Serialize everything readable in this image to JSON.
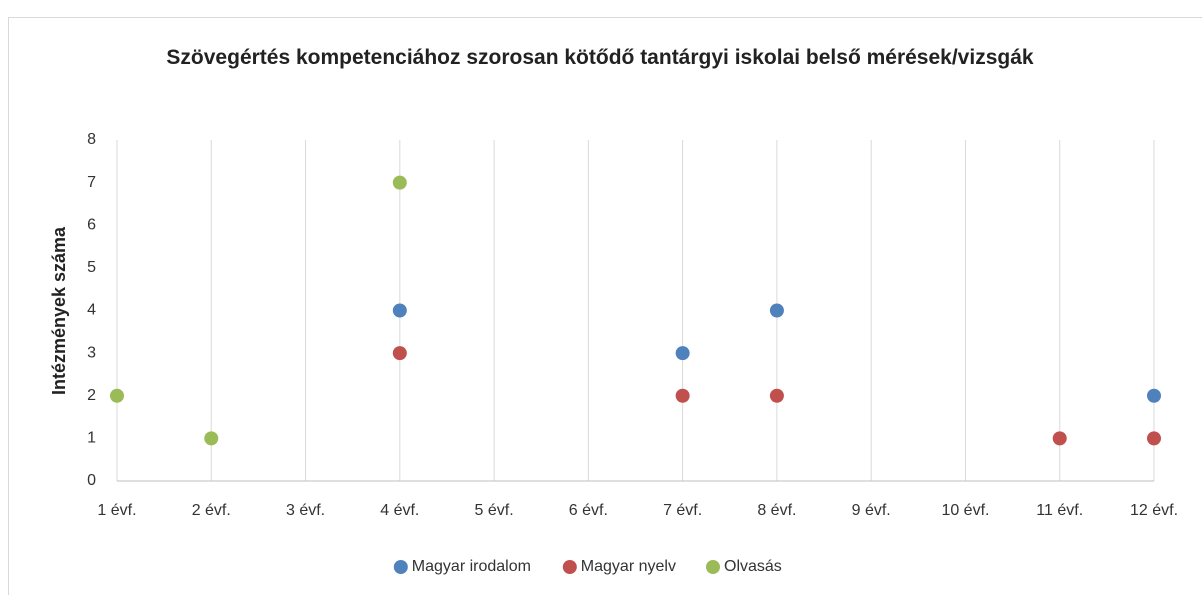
{
  "chart_data": {
    "type": "scatter",
    "title": "Szövegértés kompetenciához szorosan kötődő tantárgyi iskolai belső mérések/vizsgák",
    "ylabel": "Intézmények száma",
    "categories": [
      "1 évf.",
      "2 évf.",
      "3 évf.",
      "4 évf.",
      "5 évf.",
      "6 évf.",
      "7 évf.",
      "8 évf.",
      "9 évf.",
      "10 évf.",
      "11 évf.",
      "12 évf."
    ],
    "series": [
      {
        "name": "Magyar irodalom",
        "color": "#4f81bd",
        "values": [
          null,
          null,
          null,
          4,
          null,
          null,
          3,
          4,
          null,
          null,
          null,
          2
        ]
      },
      {
        "name": "Magyar nyelv",
        "color": "#c0504d",
        "values": [
          null,
          null,
          null,
          3,
          null,
          null,
          2,
          2,
          null,
          null,
          1,
          1
        ]
      },
      {
        "name": "Olvasás",
        "color": "#9bbb59",
        "values": [
          2,
          1,
          null,
          7,
          null,
          null,
          null,
          null,
          null,
          null,
          null,
          null
        ]
      }
    ],
    "ylim": [
      0,
      8
    ],
    "yticks": [
      0,
      1,
      2,
      3,
      4,
      5,
      6,
      7,
      8
    ],
    "grid": "x",
    "legend": "bottom"
  }
}
